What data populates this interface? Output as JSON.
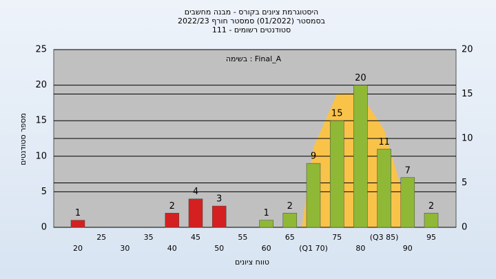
{
  "chart_data": {
    "type": "bar",
    "title": [
      "היסטוגרמת ציונים בקורס - מבנה מחשבים",
      "בסמסטר  (01/2022)  סמסטר חורף 2022/23",
      "סטודנטים רשומים - 111"
    ],
    "annotation": "בשימה : Final_A",
    "x_label": "טווח ציונים",
    "y_label": "מספר סטודנטים",
    "categories": [
      "20",
      "25",
      "30",
      "35",
      "40",
      "45",
      "50",
      "55",
      "60",
      "65",
      "(Q1 70)",
      "75",
      "80",
      "(Q3 85)",
      "90",
      "95"
    ],
    "values": [
      1,
      0,
      0,
      0,
      2,
      4,
      3,
      0,
      1,
      2,
      9,
      15,
      20,
      11,
      7,
      2
    ],
    "colors": [
      "#d42020",
      "#d42020",
      "#d42020",
      "#d42020",
      "#d42020",
      "#d42020",
      "#d42020",
      "#8fb836",
      "#8fb836",
      "#8fb836",
      "#8fb836",
      "#8fb836",
      "#8fb836",
      "#8fb836",
      "#8fb836",
      "#8fb836"
    ],
    "area": {
      "axis": "y2",
      "color": "#f9c34a",
      "values": [
        null,
        null,
        null,
        null,
        null,
        null,
        null,
        null,
        null,
        null,
        9,
        15,
        15,
        11,
        2,
        null
      ]
    },
    "ylim": [
      0,
      25
    ],
    "yticks": [
      0,
      5,
      10,
      15,
      20,
      25
    ],
    "y2lim": [
      0,
      20
    ],
    "y2ticks": [
      0,
      5,
      10,
      15,
      20
    ],
    "grid": true
  }
}
